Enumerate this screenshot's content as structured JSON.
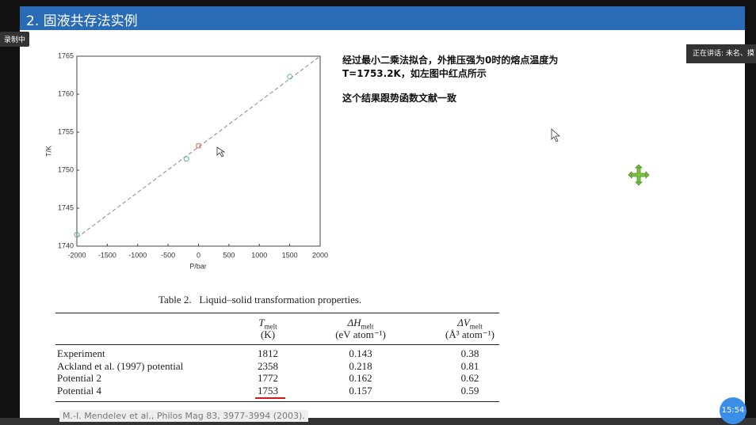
{
  "header": {
    "title": "2. 固液共存法实例"
  },
  "badges": {
    "recording": "录制中",
    "speaking": "正在讲话: 未名、摸"
  },
  "chart_data": {
    "type": "scatter",
    "xlabel": "P/bar",
    "ylabel": "T/K",
    "xlim": [
      -2000,
      2000
    ],
    "ylim": [
      1740,
      1765
    ],
    "xticks": [
      -2000,
      -1500,
      -1000,
      -500,
      0,
      500,
      1000,
      1500,
      2000
    ],
    "yticks": [
      1740,
      1745,
      1750,
      1755,
      1760,
      1765
    ],
    "series": [
      {
        "color": "#9a9a9a",
        "style": "dashed",
        "x": [
          -2000,
          2000
        ],
        "values": [
          1741.1,
          1765
        ]
      },
      {
        "color": "#5fae94",
        "marker": "circle",
        "x": [
          -2000,
          -200,
          1500
        ],
        "values": [
          1741.5,
          1751.5,
          1762.3
        ]
      },
      {
        "color": "#e06060",
        "marker": "square",
        "x": [
          0
        ],
        "values": [
          1753.2
        ]
      }
    ]
  },
  "notes": [
    "经过最小二乘法拟合，外推压强为0时的熔点温度为",
    "T=1753.2K，如左图中红点所示",
    "这个结果跟势函数文献一致"
  ],
  "table": {
    "caption": "Table 2.   Liquid–solid transformation properties.",
    "columns": [
      {
        "symbol": "T",
        "sub": "melt",
        "unit": "(K)"
      },
      {
        "symbol": "ΔH",
        "sub": "melt",
        "unit": "(eV atom⁻¹)"
      },
      {
        "symbol": "ΔV",
        "sub": "melt",
        "unit": "(Å³ atom⁻¹)"
      }
    ],
    "rows": [
      [
        "Experiment",
        "1812",
        "0.143",
        "0.38"
      ],
      [
        "Ackland et al. (1997) potential",
        "2358",
        "0.218",
        "0.81"
      ],
      [
        "Potential 2",
        "1772",
        "0.162",
        "0.62"
      ],
      [
        "Potential 4",
        "1753",
        "0.157",
        "0.59"
      ]
    ]
  },
  "citation": "M.-I. Mendelev et al., Philos Mag 83, 3977-3994 (2003).",
  "clock": "15:54"
}
